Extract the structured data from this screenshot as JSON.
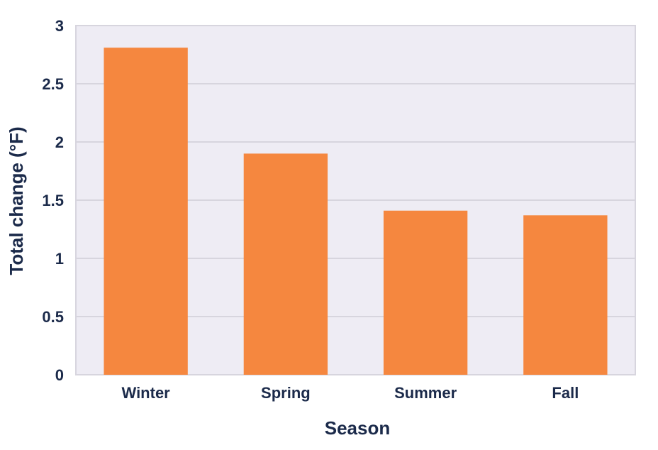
{
  "chart_data": {
    "type": "bar",
    "categories": [
      "Winter",
      "Spring",
      "Summer",
      "Fall"
    ],
    "values": [
      2.81,
      1.9,
      1.41,
      1.37
    ],
    "title": "",
    "xlabel": "Season",
    "ylabel": "Total change (°F)",
    "ylim": [
      0,
      3
    ],
    "yticks": [
      0,
      0.5,
      1,
      1.5,
      2,
      2.5,
      3
    ],
    "ytick_labels": [
      "0",
      "0.5",
      "1",
      "1.5",
      "2",
      "2.5",
      "3"
    ],
    "grid": true,
    "bar_color": "#f5873f",
    "plot_background": "#eeecf4",
    "grid_color": "#d7d5de",
    "text_color": "#1b2a4a"
  }
}
